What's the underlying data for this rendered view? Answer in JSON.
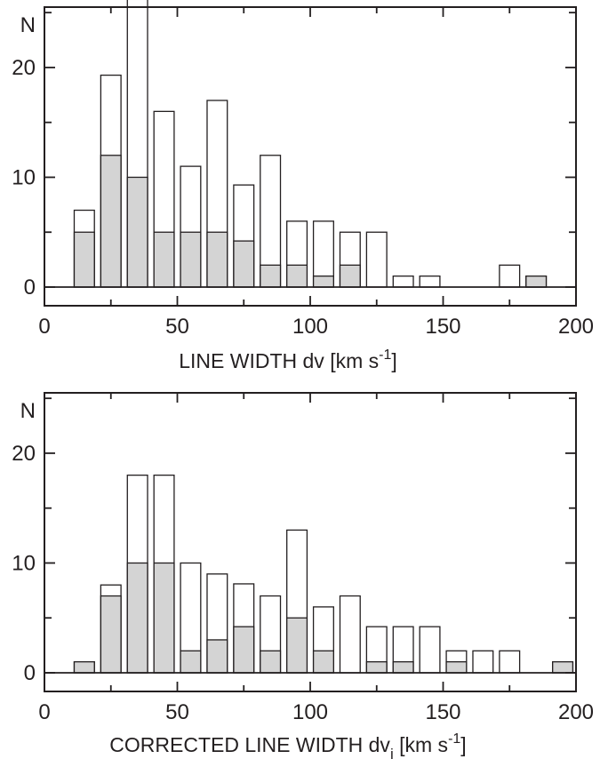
{
  "chart_data": [
    {
      "type": "bar",
      "stacked_overlay": true,
      "bin_width": 10,
      "x": [
        15,
        25,
        35,
        45,
        55,
        65,
        75,
        85,
        95,
        105,
        115,
        125,
        135,
        145,
        155,
        165,
        175,
        185,
        195
      ],
      "xlabel": "LINE  WIDTH  dv  [km s",
      "xlabel_sup": "-1",
      "xlabel_tail": "]",
      "ylabel": "N",
      "xlim": [
        0,
        200
      ],
      "ylim": [
        -1.7,
        25.5
      ],
      "xticks": [
        0,
        50,
        100,
        150,
        200
      ],
      "yticks": [
        0,
        10,
        20
      ],
      "series": [
        {
          "values": [
            7,
            19.3,
            26.2,
            16,
            11,
            17,
            9.3,
            12,
            6,
            6,
            5,
            5,
            1,
            1,
            0,
            0,
            2,
            1,
            0
          ],
          "color": "#ffffff"
        },
        {
          "values": [
            5,
            12,
            10,
            5,
            5,
            5,
            4.2,
            2,
            2,
            1,
            2,
            0,
            0,
            0,
            0,
            0,
            0,
            1,
            0
          ],
          "color": "#d4d4d4"
        }
      ]
    },
    {
      "type": "bar",
      "stacked_overlay": true,
      "bin_width": 10,
      "x": [
        15,
        25,
        35,
        45,
        55,
        65,
        75,
        85,
        95,
        105,
        115,
        125,
        135,
        145,
        155,
        165,
        175,
        185,
        195
      ],
      "xlabel": "CORRECTED  LINE  WIDTH  dv",
      "xlabel_sub": "i",
      "xlabel_unit": "  [km s",
      "xlabel_sup": "-1",
      "xlabel_tail": "]",
      "ylabel": "N",
      "xlim": [
        0,
        200
      ],
      "ylim": [
        -1.7,
        25.5
      ],
      "xticks": [
        0,
        50,
        100,
        150,
        200
      ],
      "yticks": [
        0,
        10,
        20
      ],
      "series": [
        {
          "values": [
            1,
            8,
            18,
            18,
            10,
            9,
            8.1,
            7,
            13,
            6,
            7,
            4.2,
            4.2,
            4.2,
            2,
            2,
            2,
            0,
            1
          ],
          "color": "#ffffff"
        },
        {
          "values": [
            1,
            7,
            10,
            10,
            2,
            3,
            4.2,
            2,
            5,
            2,
            0,
            1,
            1,
            0,
            1,
            0,
            0,
            0,
            1
          ],
          "color": "#d4d4d4"
        }
      ]
    }
  ]
}
